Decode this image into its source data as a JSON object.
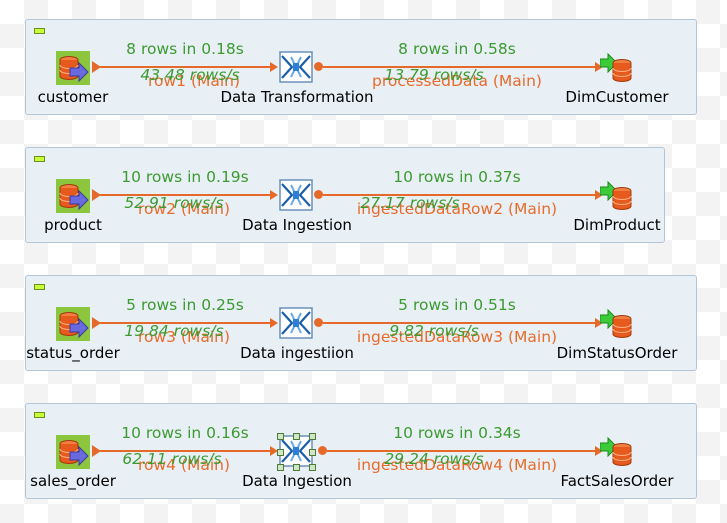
{
  "subjobs": [
    {
      "source": {
        "label": "customer",
        "icon": "db-input-icon"
      },
      "transform": {
        "label": "Data Transformation",
        "icon": "tmap-icon",
        "selected": false
      },
      "target": {
        "label": "DimCustomer",
        "icon": "db-output-icon"
      },
      "link1": {
        "name": "row1 (Main)",
        "stat": "8 rows in 0.18s",
        "rate": "43.48 rows/s"
      },
      "link2": {
        "name": "processedData (Main)",
        "stat": "8 rows in 0.58s",
        "rate": "13.79 rows/s"
      }
    },
    {
      "source": {
        "label": "product",
        "icon": "db-input-icon"
      },
      "transform": {
        "label": "Data Ingestion",
        "icon": "tmap-icon",
        "selected": false
      },
      "target": {
        "label": "DimProduct",
        "icon": "db-output-icon"
      },
      "link1": {
        "name": "row2 (Main)",
        "stat": "10 rows in 0.19s",
        "rate": "52.91 rows/s"
      },
      "link2": {
        "name": "ingestedDataRow2 (Main)",
        "stat": "10 rows in 0.37s",
        "rate": "27.17 rows/s"
      }
    },
    {
      "source": {
        "label": "status_order",
        "icon": "db-input-icon"
      },
      "transform": {
        "label": "Data ingestiion",
        "icon": "tmap-icon",
        "selected": false
      },
      "target": {
        "label": "DimStatusOrder",
        "icon": "db-output-icon"
      },
      "link1": {
        "name": "row3 (Main)",
        "stat": "5 rows in 0.25s",
        "rate": "19.84 rows/s"
      },
      "link2": {
        "name": "ingestedDataRow3 (Main)",
        "stat": "5 rows in 0.51s",
        "rate": "9.82 rows/s"
      }
    },
    {
      "source": {
        "label": "sales_order",
        "icon": "db-input-icon"
      },
      "transform": {
        "label": "Data Ingestion",
        "icon": "tmap-icon",
        "selected": true
      },
      "target": {
        "label": "FactSalesOrder",
        "icon": "db-output-icon"
      },
      "link1": {
        "name": "row4 (Main)",
        "stat": "10 rows in 0.16s",
        "rate": "62.11 rows/s"
      },
      "link2": {
        "name": "ingestedDataRow4 (Main)",
        "stat": "10 rows in 0.34s",
        "rate": "29.24 rows/s"
      }
    }
  ]
}
